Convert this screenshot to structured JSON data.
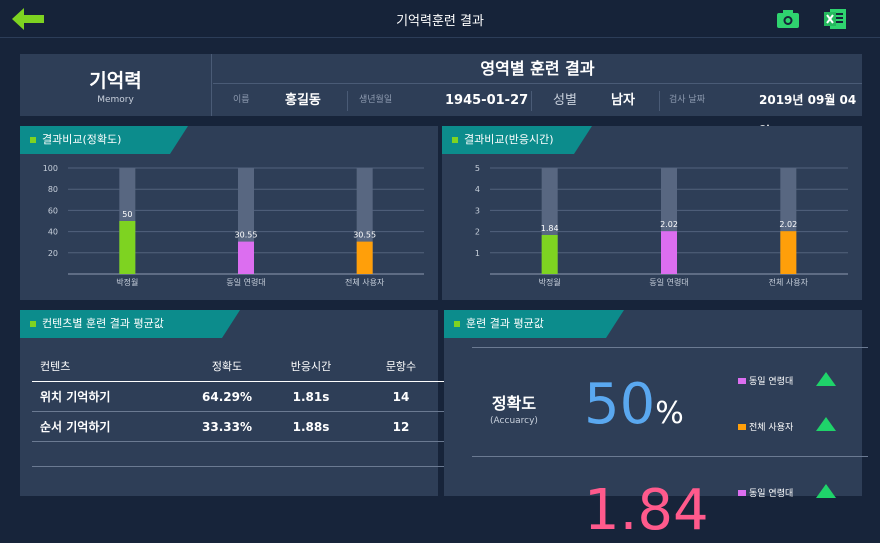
{
  "topbar": {
    "title": "기억력훈련 결과"
  },
  "info": {
    "category_ko": "기억력",
    "category_en": "Memory",
    "heading": "영역별 훈련 결과",
    "name_label": "이름",
    "name": "홍길동",
    "birth_label": "생년월일",
    "birth": "1945-01-27",
    "sex_label": "성별",
    "sex": "남자",
    "date_label": "검사 날짜",
    "date": "2019년 09월 04일"
  },
  "chart1": {
    "tab": "결과비교(정확도)"
  },
  "chart2": {
    "tab": "결과비교(반응시간)"
  },
  "chart_data": [
    {
      "type": "bar",
      "categories": [
        "박정월",
        "동일 연령대",
        "전체 사용자"
      ],
      "values": [
        50,
        30.55,
        30.55
      ],
      "value_labels": [
        "50",
        "30.55",
        "30.55"
      ],
      "colors": [
        "#7ed321",
        "#dc6ef0",
        "#ff9f0a"
      ],
      "ylim": [
        0,
        100
      ],
      "yticks": [
        "100",
        "80",
        "60",
        "40",
        "20"
      ]
    },
    {
      "type": "bar",
      "categories": [
        "박정월",
        "동일 연령대",
        "전체 사용자"
      ],
      "values": [
        1.84,
        2.02,
        2.02
      ],
      "value_labels": [
        "1.84",
        "2.02",
        "2.02"
      ],
      "colors": [
        "#7ed321",
        "#dc6ef0",
        "#ff9f0a"
      ],
      "ylim": [
        0,
        5
      ],
      "yticks": [
        "5",
        "4",
        "3",
        "2",
        "1"
      ]
    }
  ],
  "content_table": {
    "tab": "컨텐츠별 훈련 결과 평균값",
    "headers": [
      "컨텐츠",
      "정확도",
      "반응시간",
      "문항수"
    ],
    "rows": [
      [
        "위치 기억하기",
        "64.29%",
        "1.81s",
        "14"
      ],
      [
        "순서 기억하기",
        "33.33%",
        "1.88s",
        "12"
      ]
    ]
  },
  "average": {
    "tab": "훈련 결과 평균값",
    "acc_ko": "정확도",
    "acc_en": "(Accuarcy)",
    "acc_value": "50",
    "acc_unit": "%",
    "legend_age": "동일 연령대",
    "legend_all": "전체 사용자",
    "second_value": "1.84",
    "color_age": "#dc6ef0",
    "color_all": "#ff9f0a",
    "arrow_color": "#1fd36a"
  }
}
